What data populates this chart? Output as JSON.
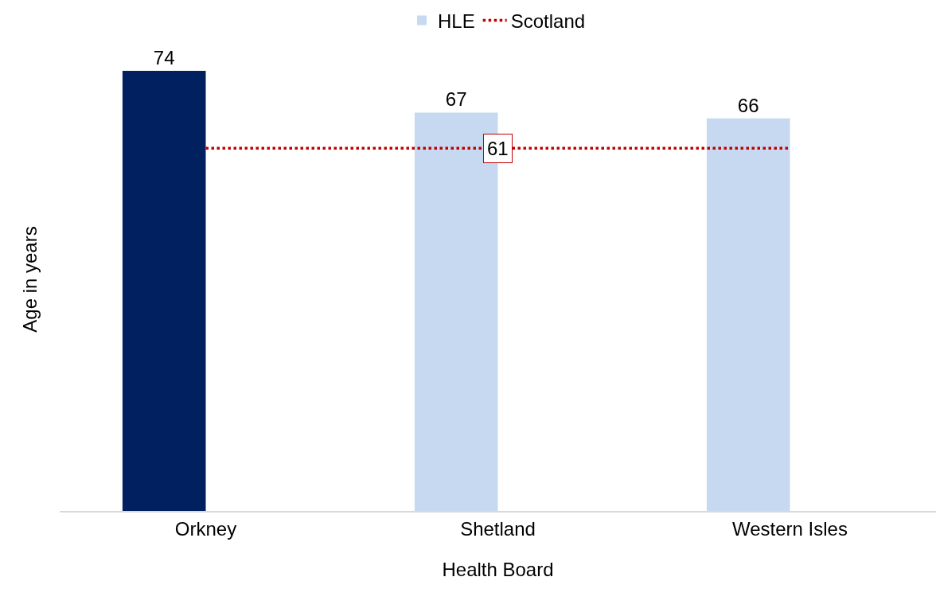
{
  "chart_data": {
    "type": "bar",
    "xlabel": "Health Board",
    "ylabel": "Age in years",
    "categories": [
      "Orkney",
      "Shetland",
      "Western Isles"
    ],
    "series": [
      {
        "name": "HLE",
        "color": "#c6d9f0",
        "colors": [
          "#002060",
          "#c6d9f0",
          "#c6d9f0"
        ],
        "values": [
          74,
          67,
          66
        ],
        "value_labels": [
          "74",
          "67",
          "66"
        ]
      },
      {
        "name": "Scotland",
        "type": "line",
        "color": "#c00000",
        "line_style": "dotted",
        "marker": "none",
        "values": [
          61,
          61,
          61
        ],
        "value_labels": [
          null,
          "61",
          null
        ]
      }
    ],
    "grid": false,
    "legend": "top"
  }
}
